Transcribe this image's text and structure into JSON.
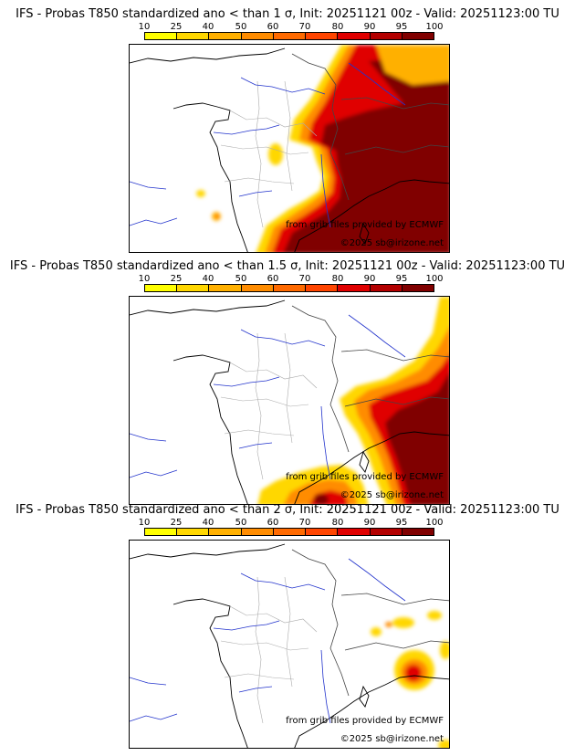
{
  "scale": {
    "labels": [
      "10",
      "25",
      "40",
      "50",
      "60",
      "70",
      "80",
      "90",
      "95",
      "100"
    ],
    "colors": [
      "#ffff00",
      "#ffd700",
      "#ffb000",
      "#ff8c00",
      "#ff6a00",
      "#ff4500",
      "#e00000",
      "#b30000",
      "#800000"
    ]
  },
  "panels": [
    {
      "title": "IFS - Probas T850  standardized ano < than 1 σ, Init: 20251121 00z - Valid: 20251123:00 TU",
      "credit_grib": "from grib files provided by ECMWF",
      "credit_copy": "©2025 sb@irizone.net"
    },
    {
      "title": "IFS - Probas T850  standardized ano < than 1.5 σ, Init: 20251121 00z - Valid: 20251123:00 TU",
      "credit_grib": "from grib files provided by ECMWF",
      "credit_copy": "©2025 sb@irizone.net"
    },
    {
      "title": "IFS - Probas T850  standardized ano < than 2 σ, Init: 20251121 00z - Valid: 20251123:00 TU",
      "credit_grib": "from grib files provided by ECMWF",
      "credit_copy": "©2025 sb@irizone.net"
    }
  ]
}
